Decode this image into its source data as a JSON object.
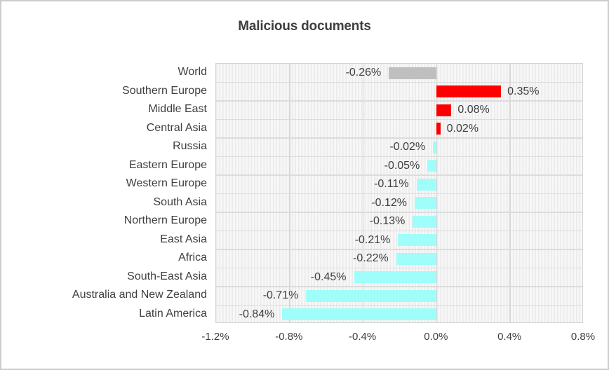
{
  "title": "Malicious documents",
  "chart_data": {
    "type": "bar",
    "orientation": "horizontal",
    "title": "Malicious documents",
    "categories": [
      "World",
      "Southern Europe",
      "Middle East",
      "Central Asia",
      "Russia",
      "Eastern Europe",
      "Western Europe",
      "South Asia",
      "Northern Europe",
      "East Asia",
      "Africa",
      "South-East Asia",
      "Australia and New Zealand",
      "Latin America"
    ],
    "values": [
      -0.26,
      0.35,
      0.08,
      0.02,
      -0.02,
      -0.05,
      -0.11,
      -0.12,
      -0.13,
      -0.21,
      -0.22,
      -0.45,
      -0.71,
      -0.84
    ],
    "value_labels": [
      "-0.26%",
      "0.35%",
      "0.08%",
      "0.02%",
      "-0.02%",
      "-0.05%",
      "-0.11%",
      "-0.12%",
      "-0.13%",
      "-0.21%",
      "-0.22%",
      "-0.45%",
      "-0.71%",
      "-0.84%"
    ],
    "bar_colors": [
      "#bfbfbf",
      "#fe0000",
      "#fe0000",
      "#fe0000",
      "#9ffef9",
      "#9ffef9",
      "#9ffef9",
      "#9ffef9",
      "#9ffef9",
      "#9ffef9",
      "#9ffef9",
      "#9ffef9",
      "#9ffef9",
      "#9ffef9"
    ],
    "color_legend": {
      "world_bar": "#bfbfbf",
      "increase_bar": "#fe0000",
      "decrease_bar": "#9ffef9",
      "text": "#3f3f3f"
    },
    "xlabel": "",
    "ylabel": "",
    "xlim": [
      -1.2,
      0.8
    ],
    "x_ticks": [
      "-1.2%",
      "-0.8%",
      "-0.4%",
      "0.0%",
      "0.4%",
      "0.8%"
    ],
    "x_tick_values": [
      -1.2,
      -0.8,
      -0.4,
      0.0,
      0.4,
      0.8
    ],
    "grid": "on",
    "legend": "none",
    "unit": "%"
  }
}
